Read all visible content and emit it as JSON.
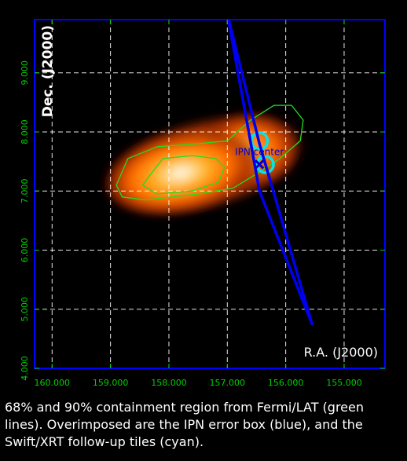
{
  "chart_data": {
    "type": "heatmap",
    "xlabel": "R.A. (J2000)",
    "ylabel": "Dec. (J2000)",
    "xlim": [
      160.3,
      154.3
    ],
    "ylim": [
      4.0,
      9.9
    ],
    "x_ticks": [
      160.0,
      159.0,
      158.0,
      157.0,
      156.0,
      155.0
    ],
    "x_tick_labels": [
      "160.000",
      "159.000",
      "158.000",
      "157.000",
      "156.000",
      "155.000"
    ],
    "y_ticks": [
      4.0,
      5.0,
      6.0,
      7.0,
      8.0,
      9.0
    ],
    "y_tick_labels": [
      "4.000",
      "5.000",
      "6.000",
      "7.000",
      "8.000",
      "9.000"
    ],
    "grid": true,
    "heat_peak": {
      "ra": 158.2,
      "dec": 7.2
    },
    "heat_secondary": {
      "ra": 156.6,
      "dec": 7.7
    },
    "contour_68": [
      [
        158.3,
        7.3
      ],
      [
        158.1,
        7.55
      ],
      [
        157.6,
        7.6
      ],
      [
        157.2,
        7.55
      ],
      [
        157.05,
        7.4
      ],
      [
        157.15,
        7.15
      ],
      [
        157.6,
        7.0
      ],
      [
        158.2,
        6.95
      ],
      [
        158.45,
        7.1
      ]
    ],
    "contour_90": [
      [
        158.9,
        7.1
      ],
      [
        158.7,
        7.55
      ],
      [
        158.2,
        7.75
      ],
      [
        157.5,
        7.8
      ],
      [
        157.0,
        7.85
      ],
      [
        156.6,
        8.2
      ],
      [
        156.2,
        8.45
      ],
      [
        155.9,
        8.45
      ],
      [
        155.7,
        8.2
      ],
      [
        155.75,
        7.85
      ],
      [
        156.1,
        7.55
      ],
      [
        156.4,
        7.35
      ],
      [
        156.9,
        7.05
      ],
      [
        157.5,
        6.95
      ],
      [
        158.4,
        6.85
      ],
      [
        158.8,
        6.9
      ]
    ],
    "ipn_box": [
      [
        157.0,
        10.0
      ],
      [
        156.45,
        7.8
      ],
      [
        155.55,
        4.75
      ],
      [
        156.45,
        7.0
      ]
    ],
    "ipn_center": {
      "ra": 156.45,
      "dec": 7.45,
      "label": "IPN center"
    },
    "xrt_tiles": [
      {
        "ra": 156.45,
        "dec": 7.85,
        "r_deg": 0.14
      },
      {
        "ra": 156.35,
        "dec": 7.45,
        "r_deg": 0.14
      }
    ],
    "colors": {
      "grid": "#ffffff",
      "frame": "#0000ff",
      "ticks": "#00d000",
      "contours": "#22dd22",
      "ipn_box": "#0000ee",
      "ipn_center": "#0000cc",
      "xrt_tiles": "#00e5ee",
      "heat": [
        "#000000",
        "#8a1a00",
        "#ff5a00",
        "#ffa000",
        "#ffe0a0",
        "#ffffff"
      ]
    }
  },
  "caption": "68% and 90% containment region from Fermi/LAT (green lines). Overimposed are the IPN error box (blue), and the Swift/XRT follow-up tiles (cyan)."
}
